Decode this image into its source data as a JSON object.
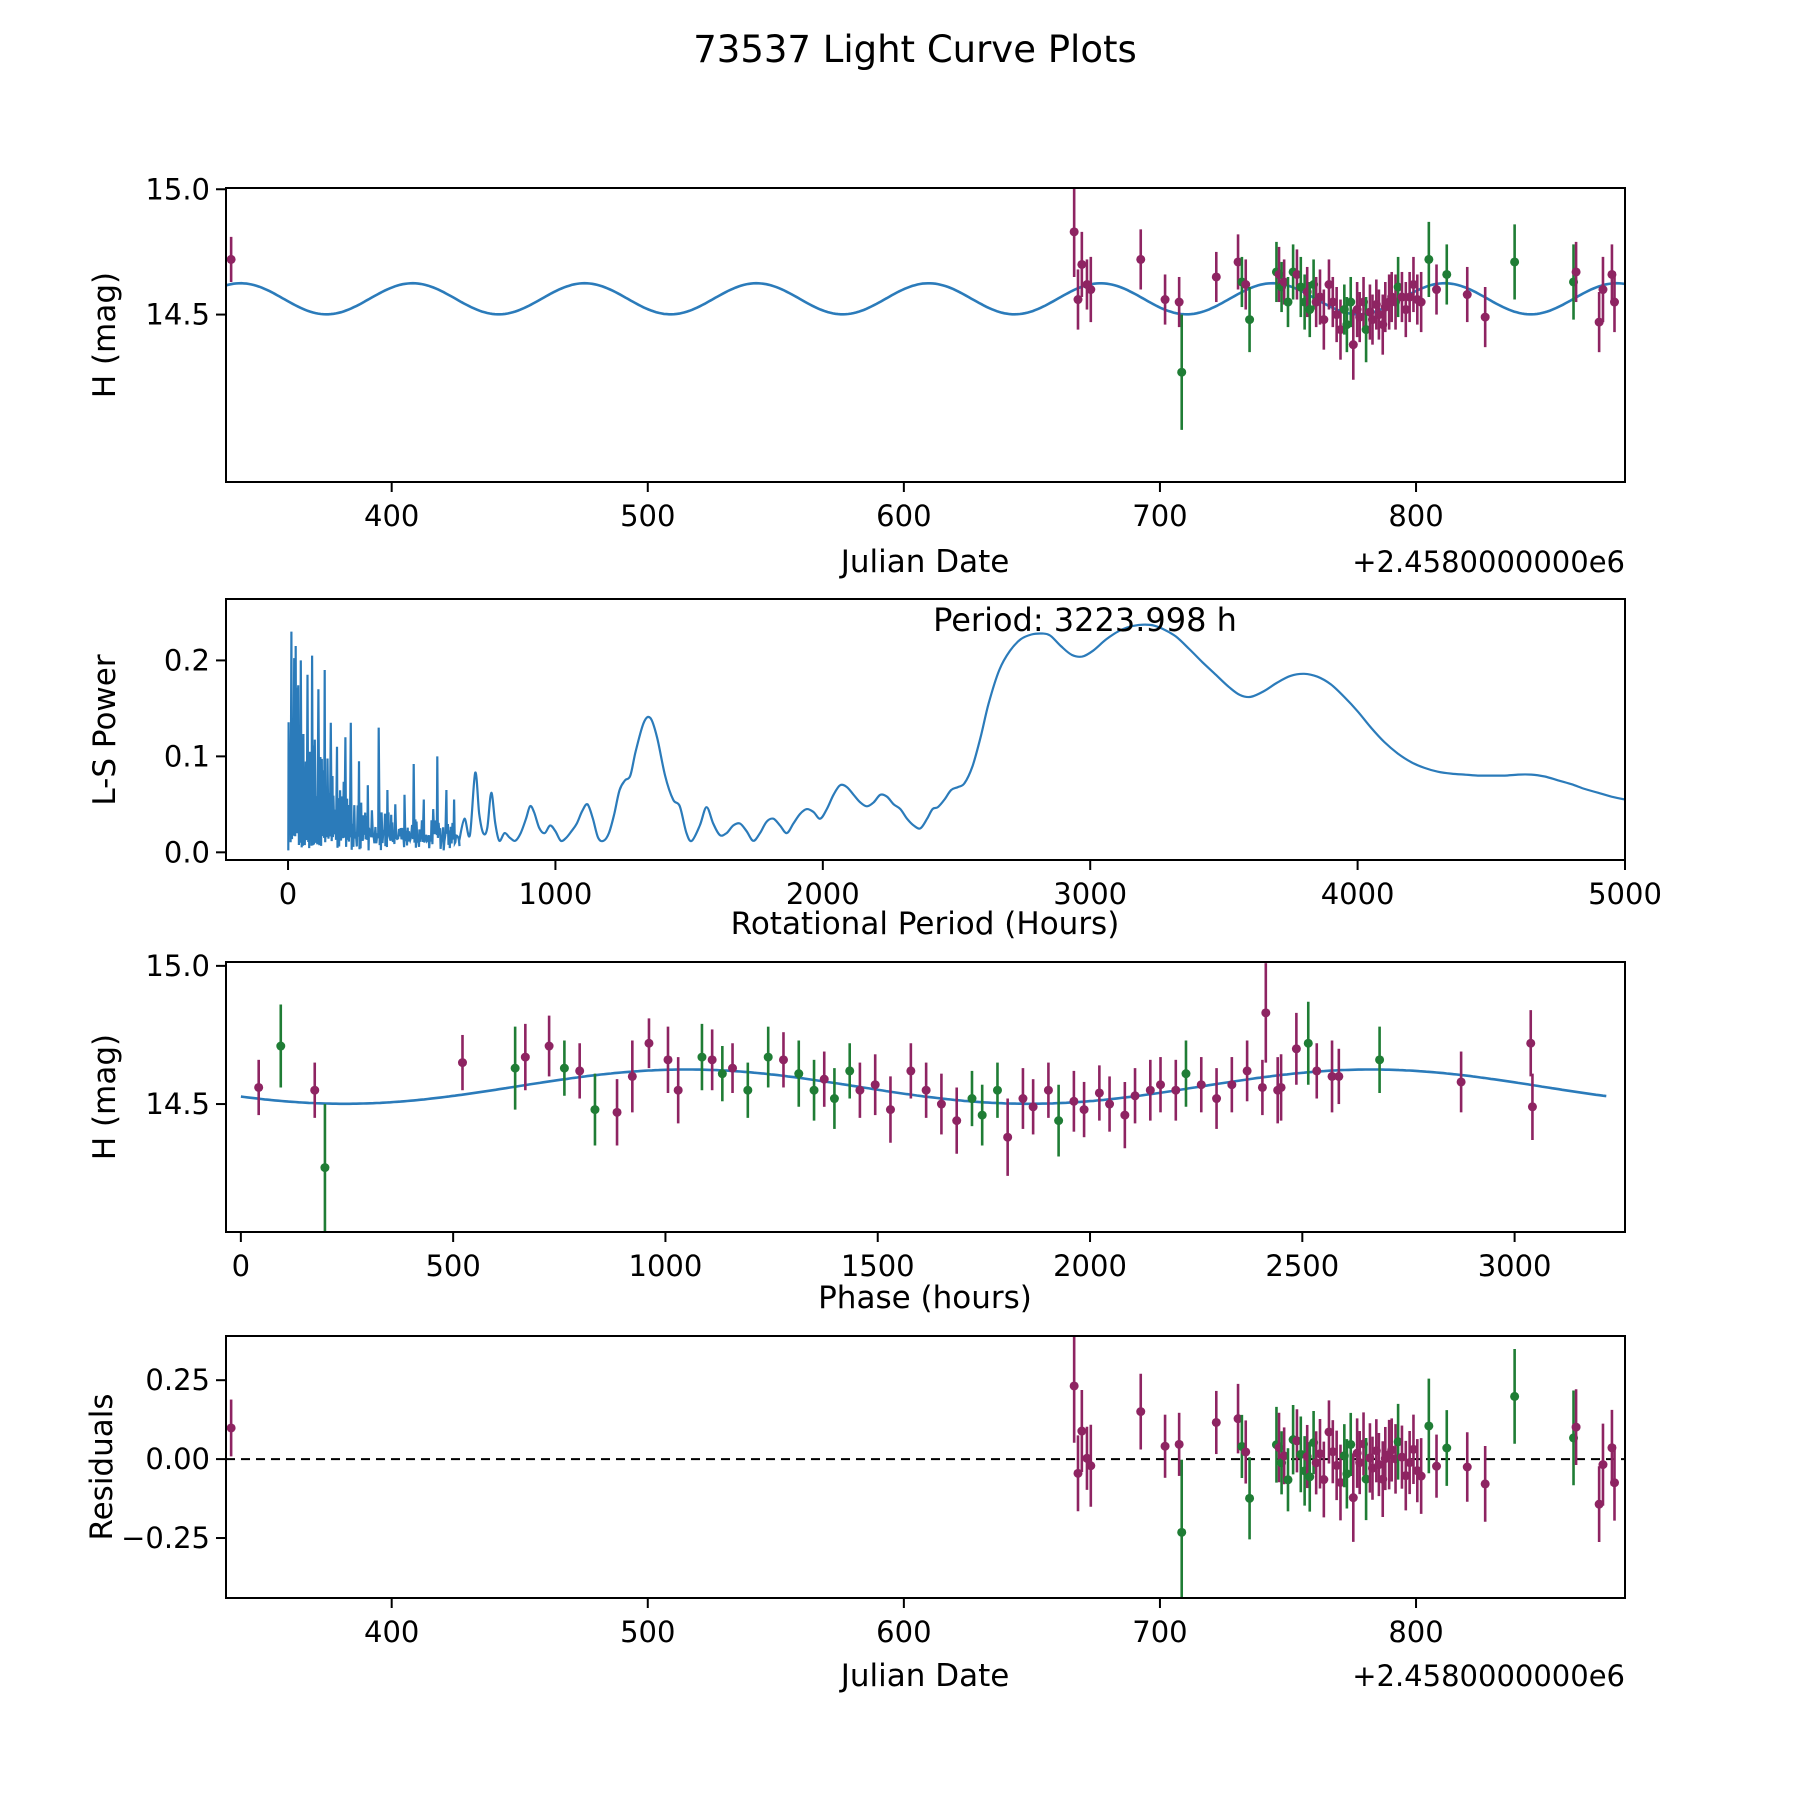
{
  "title": "73537 Light Curve Plots",
  "colors": {
    "fit_line": "#2b7bba",
    "periodogram_line": "#2b7bba",
    "group_purple": "#8e2462",
    "group_green": "#1f7d35",
    "zero_line": "#000000",
    "axes": "#000000"
  },
  "model": {
    "mean_mag": 14.563,
    "amplitude_mag": 0.062,
    "period_hours": 3223.998,
    "harmonic": 2,
    "phase_reference_jd_minus_2458000": 297.25
  },
  "observations": {
    "columns": [
      "jd_minus_2458000",
      "h_mag",
      "h_err",
      "group"
    ],
    "groups": {
      "0": "purple-dataset",
      "1": "green-dataset"
    },
    "rows": [
      [
        337.3,
        14.72,
        0.09,
        0
      ],
      [
        666.5,
        14.83,
        0.18,
        0
      ],
      [
        668.0,
        14.56,
        0.12,
        0
      ],
      [
        669.5,
        14.7,
        0.13,
        0
      ],
      [
        671.5,
        14.62,
        0.1,
        0
      ],
      [
        673.0,
        14.6,
        0.13,
        0
      ],
      [
        692.5,
        14.72,
        0.12,
        0
      ],
      [
        702.0,
        14.56,
        0.1,
        0
      ],
      [
        707.5,
        14.55,
        0.1,
        0
      ],
      [
        708.5,
        14.27,
        0.23,
        1
      ],
      [
        722.0,
        14.65,
        0.1,
        0
      ],
      [
        730.5,
        14.71,
        0.11,
        0
      ],
      [
        732.0,
        14.63,
        0.1,
        1
      ],
      [
        733.5,
        14.62,
        0.1,
        0
      ],
      [
        735.0,
        14.48,
        0.13,
        1
      ],
      [
        745.5,
        14.67,
        0.12,
        1
      ],
      [
        746.5,
        14.66,
        0.11,
        0
      ],
      [
        747.5,
        14.61,
        0.1,
        1
      ],
      [
        748.5,
        14.63,
        0.09,
        0
      ],
      [
        750.0,
        14.55,
        0.1,
        1
      ],
      [
        752.0,
        14.67,
        0.11,
        1
      ],
      [
        753.5,
        14.66,
        0.1,
        0
      ],
      [
        755.0,
        14.61,
        0.12,
        1
      ],
      [
        756.5,
        14.55,
        0.11,
        1
      ],
      [
        757.5,
        14.59,
        0.1,
        0
      ],
      [
        758.5,
        14.52,
        0.11,
        1
      ],
      [
        760.0,
        14.62,
        0.1,
        1
      ],
      [
        761.0,
        14.55,
        0.1,
        0
      ],
      [
        762.5,
        14.57,
        0.11,
        0
      ],
      [
        764.0,
        14.48,
        0.12,
        0
      ],
      [
        766.0,
        14.62,
        0.1,
        0
      ],
      [
        767.5,
        14.55,
        0.1,
        0
      ],
      [
        769.0,
        14.5,
        0.11,
        0
      ],
      [
        770.5,
        14.44,
        0.12,
        0
      ],
      [
        772.0,
        14.52,
        0.1,
        1
      ],
      [
        773.0,
        14.46,
        0.11,
        1
      ],
      [
        774.5,
        14.55,
        0.1,
        1
      ],
      [
        775.5,
        14.38,
        0.14,
        0
      ],
      [
        777.0,
        14.52,
        0.11,
        0
      ],
      [
        778.0,
        14.49,
        0.1,
        0
      ],
      [
        779.5,
        14.55,
        0.1,
        0
      ],
      [
        780.5,
        14.44,
        0.13,
        1
      ],
      [
        782.0,
        14.51,
        0.11,
        0
      ],
      [
        783.0,
        14.48,
        0.1,
        0
      ],
      [
        784.5,
        14.54,
        0.1,
        0
      ],
      [
        785.5,
        14.5,
        0.1,
        0
      ],
      [
        787.0,
        14.46,
        0.12,
        0
      ],
      [
        788.0,
        14.53,
        0.1,
        0
      ],
      [
        789.5,
        14.55,
        0.11,
        0
      ],
      [
        790.5,
        14.57,
        0.1,
        0
      ],
      [
        792.0,
        14.55,
        0.11,
        0
      ],
      [
        793.0,
        14.61,
        0.12,
        1
      ],
      [
        794.5,
        14.57,
        0.1,
        0
      ],
      [
        796.0,
        14.52,
        0.11,
        0
      ],
      [
        797.5,
        14.57,
        0.1,
        0
      ],
      [
        799.0,
        14.62,
        0.11,
        0
      ],
      [
        800.5,
        14.56,
        0.1,
        0
      ],
      [
        802.0,
        14.55,
        0.12,
        0
      ],
      [
        805.0,
        14.72,
        0.15,
        1
      ],
      [
        808.0,
        14.6,
        0.1,
        0
      ],
      [
        812.0,
        14.66,
        0.12,
        1
      ],
      [
        820.0,
        14.58,
        0.11,
        0
      ],
      [
        827.0,
        14.49,
        0.12,
        0
      ],
      [
        838.5,
        14.71,
        0.15,
        1
      ],
      [
        861.5,
        14.63,
        0.15,
        1
      ],
      [
        862.5,
        14.67,
        0.12,
        0
      ],
      [
        871.5,
        14.47,
        0.12,
        0
      ],
      [
        873.0,
        14.6,
        0.13,
        0
      ],
      [
        876.5,
        14.66,
        0.12,
        0
      ],
      [
        877.5,
        14.55,
        0.12,
        0
      ]
    ]
  },
  "chart_data": [
    {
      "id": "light_curve",
      "type": "scatter",
      "xlabel": "Julian Date",
      "ylabel": "H (mag)",
      "x_offset_text": "+2.4580000000e6",
      "xlim": [
        335.3,
        881.6
      ],
      "ylim": [
        13.832,
        15.005
      ],
      "xticks": [
        400,
        500,
        600,
        700,
        800
      ],
      "xtick_labels": [
        "400",
        "500",
        "600",
        "700",
        "800"
      ],
      "yticks": [
        15.0,
        14.5
      ],
      "ytick_labels": [
        "15.0",
        "14.5"
      ]
    },
    {
      "id": "periodogram",
      "type": "line",
      "xlabel": "Rotational Period (Hours)",
      "ylabel": "L-S Power",
      "annotation": "Period: 3223.998 h",
      "best_period_hours": 3223.998,
      "xlim": [
        -232,
        5000
      ],
      "ylim": [
        -0.008,
        0.264
      ],
      "xticks": [
        0,
        1000,
        2000,
        3000,
        4000,
        5000
      ],
      "xtick_labels": [
        "0",
        "1000",
        "2000",
        "3000",
        "4000",
        "5000"
      ],
      "yticks": [
        0.0,
        0.1,
        0.2
      ],
      "ytick_labels": [
        "0.0",
        "0.1",
        "0.2"
      ],
      "noise_region": {
        "x_max": 640,
        "seed": 123456,
        "landmarks": [
          [
            15,
            0.23
          ],
          [
            30,
            0.215
          ],
          [
            50,
            0.2
          ],
          [
            70,
            0.185
          ],
          [
            90,
            0.205
          ],
          [
            115,
            0.17
          ],
          [
            135,
            0.19
          ],
          [
            160,
            0.135
          ],
          [
            185,
            0.11
          ],
          [
            215,
            0.12
          ],
          [
            235,
            0.135
          ],
          [
            265,
            0.095
          ],
          [
            300,
            0.07
          ],
          [
            340,
            0.13
          ],
          [
            370,
            0.065
          ],
          [
            400,
            0.05
          ],
          [
            435,
            0.06
          ],
          [
            470,
            0.092
          ],
          [
            505,
            0.055
          ],
          [
            540,
            0.045
          ],
          [
            560,
            0.1
          ],
          [
            590,
            0.065
          ],
          [
            620,
            0.055
          ]
        ]
      },
      "smooth_curve": [
        [
          640,
          0.012
        ],
        [
          660,
          0.035
        ],
        [
          680,
          0.018
        ],
        [
          700,
          0.083
        ],
        [
          715,
          0.04
        ],
        [
          730,
          0.02
        ],
        [
          745,
          0.025
        ],
        [
          760,
          0.062
        ],
        [
          775,
          0.03
        ],
        [
          790,
          0.012
        ],
        [
          810,
          0.02
        ],
        [
          830,
          0.015
        ],
        [
          850,
          0.012
        ],
        [
          870,
          0.02
        ],
        [
          890,
          0.035
        ],
        [
          905,
          0.048
        ],
        [
          920,
          0.042
        ],
        [
          940,
          0.025
        ],
        [
          960,
          0.02
        ],
        [
          980,
          0.028
        ],
        [
          1000,
          0.022
        ],
        [
          1020,
          0.012
        ],
        [
          1040,
          0.015
        ],
        [
          1060,
          0.022
        ],
        [
          1080,
          0.03
        ],
        [
          1100,
          0.043
        ],
        [
          1120,
          0.05
        ],
        [
          1140,
          0.035
        ],
        [
          1160,
          0.015
        ],
        [
          1180,
          0.012
        ],
        [
          1200,
          0.02
        ],
        [
          1220,
          0.04
        ],
        [
          1240,
          0.065
        ],
        [
          1260,
          0.075
        ],
        [
          1280,
          0.08
        ],
        [
          1300,
          0.105
        ],
        [
          1330,
          0.135
        ],
        [
          1355,
          0.14
        ],
        [
          1380,
          0.12
        ],
        [
          1410,
          0.08
        ],
        [
          1440,
          0.055
        ],
        [
          1465,
          0.048
        ],
        [
          1490,
          0.02
        ],
        [
          1510,
          0.012
        ],
        [
          1540,
          0.028
        ],
        [
          1565,
          0.047
        ],
        [
          1590,
          0.03
        ],
        [
          1615,
          0.018
        ],
        [
          1640,
          0.02
        ],
        [
          1665,
          0.028
        ],
        [
          1690,
          0.03
        ],
        [
          1715,
          0.022
        ],
        [
          1740,
          0.012
        ],
        [
          1765,
          0.02
        ],
        [
          1790,
          0.032
        ],
        [
          1815,
          0.035
        ],
        [
          1840,
          0.028
        ],
        [
          1865,
          0.02
        ],
        [
          1890,
          0.03
        ],
        [
          1915,
          0.04
        ],
        [
          1940,
          0.045
        ],
        [
          1965,
          0.042
        ],
        [
          1990,
          0.035
        ],
        [
          2015,
          0.045
        ],
        [
          2040,
          0.06
        ],
        [
          2065,
          0.07
        ],
        [
          2090,
          0.068
        ],
        [
          2115,
          0.06
        ],
        [
          2140,
          0.052
        ],
        [
          2165,
          0.048
        ],
        [
          2190,
          0.052
        ],
        [
          2215,
          0.06
        ],
        [
          2240,
          0.058
        ],
        [
          2265,
          0.05
        ],
        [
          2290,
          0.045
        ],
        [
          2315,
          0.035
        ],
        [
          2340,
          0.028
        ],
        [
          2365,
          0.025
        ],
        [
          2390,
          0.035
        ],
        [
          2410,
          0.045
        ],
        [
          2430,
          0.047
        ],
        [
          2455,
          0.055
        ],
        [
          2480,
          0.065
        ],
        [
          2505,
          0.068
        ],
        [
          2530,
          0.072
        ],
        [
          2560,
          0.09
        ],
        [
          2590,
          0.12
        ],
        [
          2620,
          0.155
        ],
        [
          2660,
          0.19
        ],
        [
          2700,
          0.21
        ],
        [
          2740,
          0.222
        ],
        [
          2780,
          0.227
        ],
        [
          2820,
          0.228
        ],
        [
          2850,
          0.226
        ],
        [
          2890,
          0.215
        ],
        [
          2930,
          0.206
        ],
        [
          2970,
          0.204
        ],
        [
          3010,
          0.21
        ],
        [
          3060,
          0.222
        ],
        [
          3110,
          0.231
        ],
        [
          3160,
          0.236
        ],
        [
          3224,
          0.237
        ],
        [
          3270,
          0.233
        ],
        [
          3320,
          0.225
        ],
        [
          3370,
          0.212
        ],
        [
          3420,
          0.198
        ],
        [
          3470,
          0.185
        ],
        [
          3520,
          0.172
        ],
        [
          3560,
          0.164
        ],
        [
          3600,
          0.162
        ],
        [
          3650,
          0.168
        ],
        [
          3700,
          0.177
        ],
        [
          3750,
          0.184
        ],
        [
          3800,
          0.186
        ],
        [
          3850,
          0.183
        ],
        [
          3900,
          0.175
        ],
        [
          3950,
          0.162
        ],
        [
          4000,
          0.147
        ],
        [
          4050,
          0.13
        ],
        [
          4100,
          0.115
        ],
        [
          4150,
          0.103
        ],
        [
          4200,
          0.094
        ],
        [
          4250,
          0.088
        ],
        [
          4300,
          0.084
        ],
        [
          4350,
          0.082
        ],
        [
          4400,
          0.081
        ],
        [
          4450,
          0.08
        ],
        [
          4500,
          0.08
        ],
        [
          4550,
          0.08
        ],
        [
          4600,
          0.081
        ],
        [
          4650,
          0.081
        ],
        [
          4700,
          0.079
        ],
        [
          4750,
          0.075
        ],
        [
          4800,
          0.071
        ],
        [
          4850,
          0.066
        ],
        [
          4900,
          0.062
        ],
        [
          4950,
          0.058
        ],
        [
          5000,
          0.055
        ]
      ]
    },
    {
      "id": "phased_light_curve",
      "type": "scatter",
      "xlabel": "Phase (hours)",
      "ylabel": "H (mag)",
      "xlim": [
        -35,
        3260
      ],
      "ylim": [
        14.037,
        15.014
      ],
      "xticks": [
        0,
        500,
        1000,
        1500,
        2000,
        2500,
        3000
      ],
      "xtick_labels": [
        "0",
        "500",
        "1000",
        "1500",
        "2000",
        "2500",
        "3000"
      ],
      "yticks": [
        15.0,
        14.5
      ],
      "ytick_labels": [
        "15.0",
        "14.5"
      ]
    },
    {
      "id": "residuals",
      "type": "scatter",
      "xlabel": "Julian Date",
      "ylabel": "Residuals",
      "x_offset_text": "+2.4580000000e6",
      "xlim": [
        335.3,
        881.6
      ],
      "ylim": [
        -0.44,
        0.39
      ],
      "xticks": [
        400,
        500,
        600,
        700,
        800
      ],
      "xtick_labels": [
        "400",
        "500",
        "600",
        "700",
        "800"
      ],
      "yticks": [
        0.25,
        0.0,
        -0.25
      ],
      "ytick_labels": [
        "0.25",
        "0.00",
        "−0.25"
      ],
      "zero_line": true
    }
  ]
}
